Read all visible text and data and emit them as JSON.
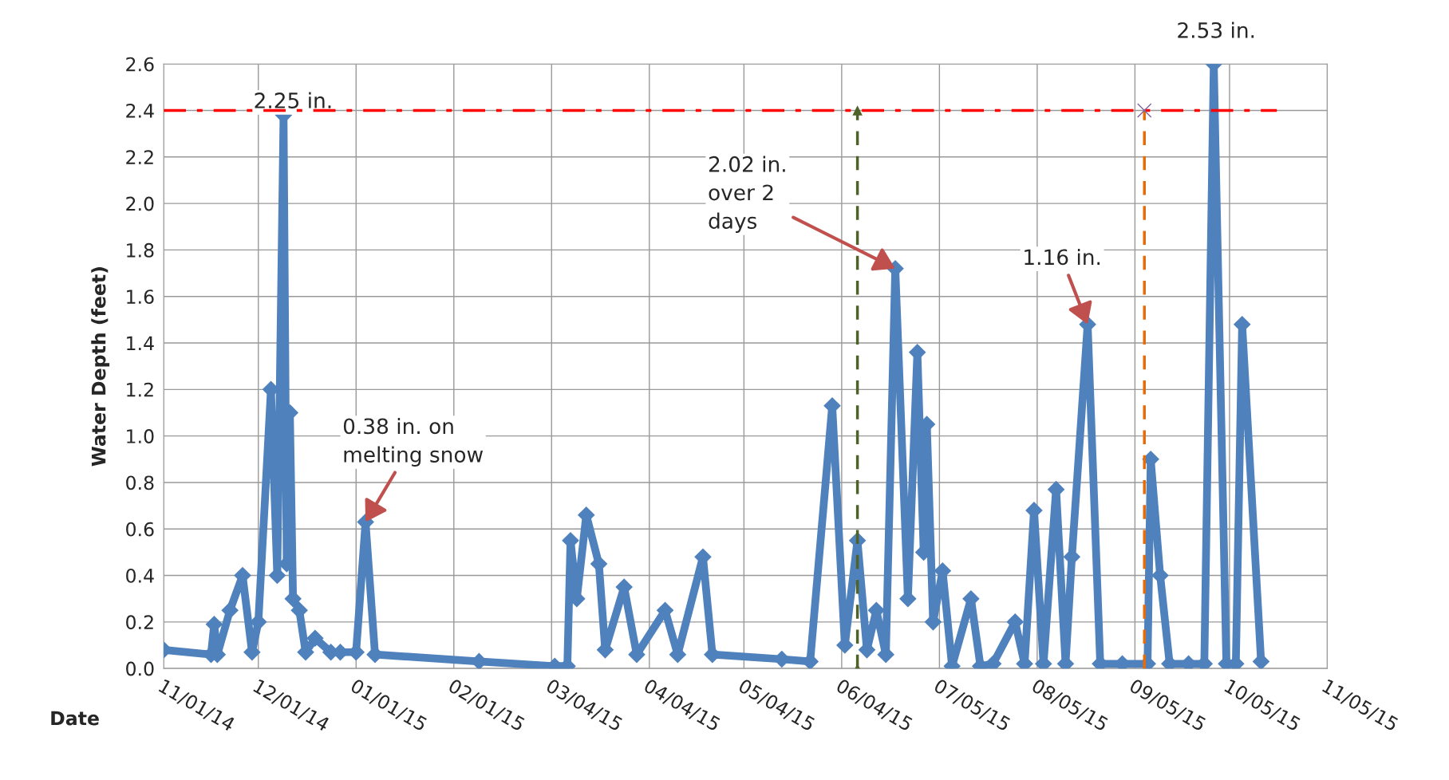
{
  "chart_data": {
    "type": "line",
    "xlabel": "Date",
    "ylabel": "Water Depth (feet)",
    "xlim": [
      "2014-11-01",
      "2015-11-05"
    ],
    "ylim": [
      0,
      2.6
    ],
    "xticks": [
      {
        "value": "2014-11-01",
        "label": "11/01/14"
      },
      {
        "value": "2014-12-01",
        "label": "12/01/14"
      },
      {
        "value": "2015-01-01",
        "label": "01/01/15"
      },
      {
        "value": "2015-02-01",
        "label": "02/01/15"
      },
      {
        "value": "2015-03-04",
        "label": "03/04/15"
      },
      {
        "value": "2015-04-04",
        "label": "04/04/15"
      },
      {
        "value": "2015-05-04",
        "label": "05/04/15"
      },
      {
        "value": "2015-06-04",
        "label": "06/04/15"
      },
      {
        "value": "2015-07-05",
        "label": "07/05/15"
      },
      {
        "value": "2015-08-05",
        "label": "08/05/15"
      },
      {
        "value": "2015-09-05",
        "label": "09/05/15"
      },
      {
        "value": "2015-10-05",
        "label": "10/05/15"
      },
      {
        "value": "2015-11-05",
        "label": "11/05/15"
      }
    ],
    "yticks": [
      {
        "value": 0,
        "label": "0.0"
      },
      0.2,
      0.4,
      0.6,
      0.8,
      {
        "value": 1,
        "label": "1.0"
      },
      1.2,
      1.4,
      1.6,
      1.8,
      {
        "value": 2,
        "label": "2.0"
      },
      2.2,
      2.4,
      2.6
    ],
    "grid": true,
    "series": [
      {
        "color": "#4f81bd",
        "marker": "diamond",
        "line_style": "solid",
        "x": [
          "2014-11-01",
          "2014-11-16",
          "2014-11-17",
          "2014-11-18",
          "2014-11-22",
          "2014-11-26",
          "2014-11-29",
          "2014-12-01",
          "2014-12-05",
          "2014-12-07",
          "2014-12-09",
          "2014-12-10",
          "2014-12-11",
          "2014-12-12",
          "2014-12-14",
          "2014-12-16",
          "2014-12-19",
          "2014-12-24",
          "2014-12-27",
          "2015-01-01",
          "2015-01-04",
          "2015-01-07",
          "2015-02-09",
          "2015-03-05",
          "2015-03-09",
          "2015-03-10",
          "2015-03-12",
          "2015-03-15",
          "2015-03-19",
          "2015-03-21",
          "2015-03-27",
          "2015-03-31",
          "2015-04-09",
          "2015-04-13",
          "2015-04-21",
          "2015-04-24",
          "2015-05-16",
          "2015-05-25",
          "2015-06-01",
          "2015-06-05",
          "2015-06-09",
          "2015-06-12",
          "2015-06-15",
          "2015-06-18",
          "2015-06-21",
          "2015-06-25",
          "2015-06-28",
          "2015-06-30",
          "2015-07-01",
          "2015-07-03",
          "2015-07-06",
          "2015-07-09",
          "2015-07-15",
          "2015-07-18",
          "2015-07-22",
          "2015-07-29",
          "2015-08-01",
          "2015-08-04",
          "2015-08-07",
          "2015-08-11",
          "2015-08-14",
          "2015-08-16",
          "2015-08-21",
          "2015-08-25",
          "2015-09-01",
          "2015-09-09",
          "2015-09-10",
          "2015-09-13",
          "2015-09-16",
          "2015-09-22",
          "2015-09-27",
          "2015-09-30",
          "2015-10-04",
          "2015-10-07",
          "2015-10-09",
          "2015-10-15"
        ],
        "values": [
          0.08,
          0.06,
          0.19,
          0.06,
          0.25,
          0.4,
          0.07,
          0.2,
          1.2,
          0.4,
          2.38,
          0.45,
          1.1,
          0.3,
          0.25,
          0.07,
          0.13,
          0.07,
          0.07,
          0.07,
          0.63,
          0.06,
          0.03,
          0.01,
          0.01,
          0.55,
          0.3,
          0.66,
          0.45,
          0.08,
          0.35,
          0.06,
          0.25,
          0.06,
          0.48,
          0.06,
          0.04,
          0.03,
          1.13,
          0.1,
          0.55,
          0.08,
          0.25,
          0.06,
          1.72,
          0.3,
          1.36,
          0.5,
          1.05,
          0.2,
          0.42,
          0.01,
          0.3,
          0.01,
          0.02,
          0.2,
          0.02,
          0.68,
          0.02,
          0.77,
          0.02,
          0.48,
          1.48,
          0.02,
          0.02,
          0.02,
          0.9,
          0.4,
          0.02,
          0.02,
          0.02,
          2.6,
          0.02,
          0.02,
          1.48,
          0.03
        ]
      },
      {
        "color": "#ff0000",
        "marker": "none",
        "line_style": "dashdot",
        "x": [
          "2014-11-01",
          "2015-10-20"
        ],
        "values": [
          2.4,
          2.4
        ]
      },
      {
        "color": "#4f6228",
        "marker": "triangle",
        "line_style": "dashed",
        "x": [
          "2015-06-09",
          "2015-06-09"
        ],
        "values": [
          0,
          2.4
        ]
      },
      {
        "color": "#e46c0a",
        "marker": "none",
        "line_style": "dashed",
        "x": [
          "2015-09-08",
          "2015-09-08"
        ],
        "values": [
          0,
          2.4
        ]
      },
      {
        "type": "scatter",
        "color": "#8064a2",
        "marker": "cross",
        "x": [
          "2015-09-08"
        ],
        "values": [
          2.4
        ]
      }
    ],
    "annotations": [
      {
        "text": "2.25 in.",
        "x": "2014-12-09",
        "y": 2.38
      },
      {
        "text": "0.38 in. on\nmelting snow",
        "x": "2015-01-04",
        "y": 0.63
      },
      {
        "text": "2.02 in.\nover 2\ndays",
        "x": "2015-06-21",
        "y": 1.72
      },
      {
        "text": "1.16 in.",
        "x": "2015-08-21",
        "y": 1.48
      },
      {
        "text": "2.53 in.",
        "x": "2015-09-30",
        "y": 2.6
      }
    ]
  }
}
